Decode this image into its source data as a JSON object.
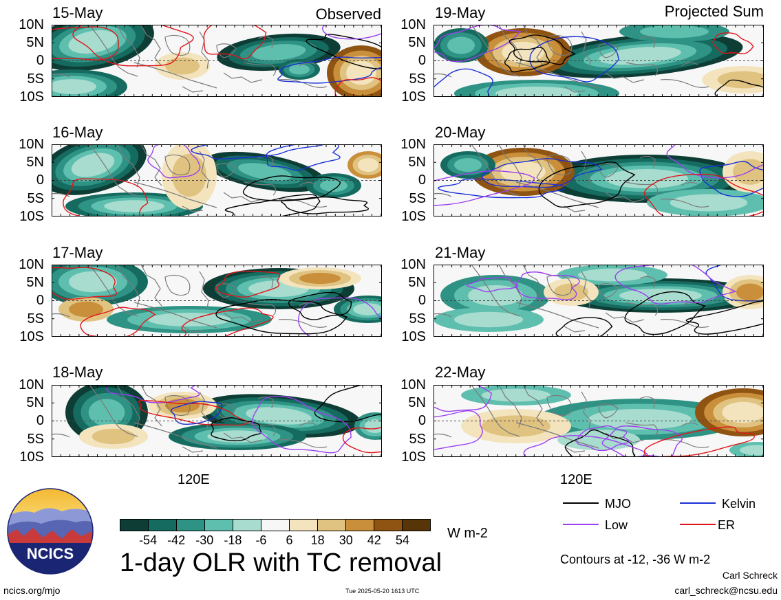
{
  "panels": [
    {
      "date": "15-May",
      "corner": "Observed",
      "variant": 0
    },
    {
      "date": "16-May",
      "corner": "",
      "variant": 1
    },
    {
      "date": "17-May",
      "corner": "",
      "variant": 2
    },
    {
      "date": "18-May",
      "corner": "",
      "variant": 3
    },
    {
      "date": "19-May",
      "corner": "Projected Sum",
      "variant": 4
    },
    {
      "date": "20-May",
      "corner": "",
      "variant": 5
    },
    {
      "date": "21-May",
      "corner": "",
      "variant": 6
    },
    {
      "date": "22-May",
      "corner": "",
      "variant": 7
    }
  ],
  "lat_labels": [
    "10N",
    "5N",
    "0",
    "5S",
    "10S"
  ],
  "lon_label": "120E",
  "colorbar": {
    "colors": [
      "#0d3d35",
      "#156b5f",
      "#2e9384",
      "#5fbfae",
      "#a8dccf",
      "#f7f7f7",
      "#f3e4be",
      "#e0c380",
      "#c98f3b",
      "#8f5312",
      "#583509"
    ],
    "ticks": [
      "-54",
      "-42",
      "-30",
      "-18",
      "-6",
      "6",
      "18",
      "30",
      "42",
      "54"
    ],
    "units": "W m-2"
  },
  "legend": {
    "items": [
      {
        "label": "MJO",
        "color": "#000000"
      },
      {
        "label": "Kelvin",
        "color": "#1a2fd6"
      },
      {
        "label": "Low",
        "color": "#9b3ff0"
      },
      {
        "label": "ER",
        "color": "#e0161b"
      }
    ],
    "contours_note": "Contours at -12, -36 W m-2"
  },
  "title": "1-day OLR with TC removal",
  "logo_text": "NCICS",
  "footer": {
    "website": "ncics.org/mjo",
    "timestamp": "Tue 2025-05-20 1613 UTC",
    "author": "Carl Schreck",
    "email": "carl_schreck@ncsu.edu"
  }
}
